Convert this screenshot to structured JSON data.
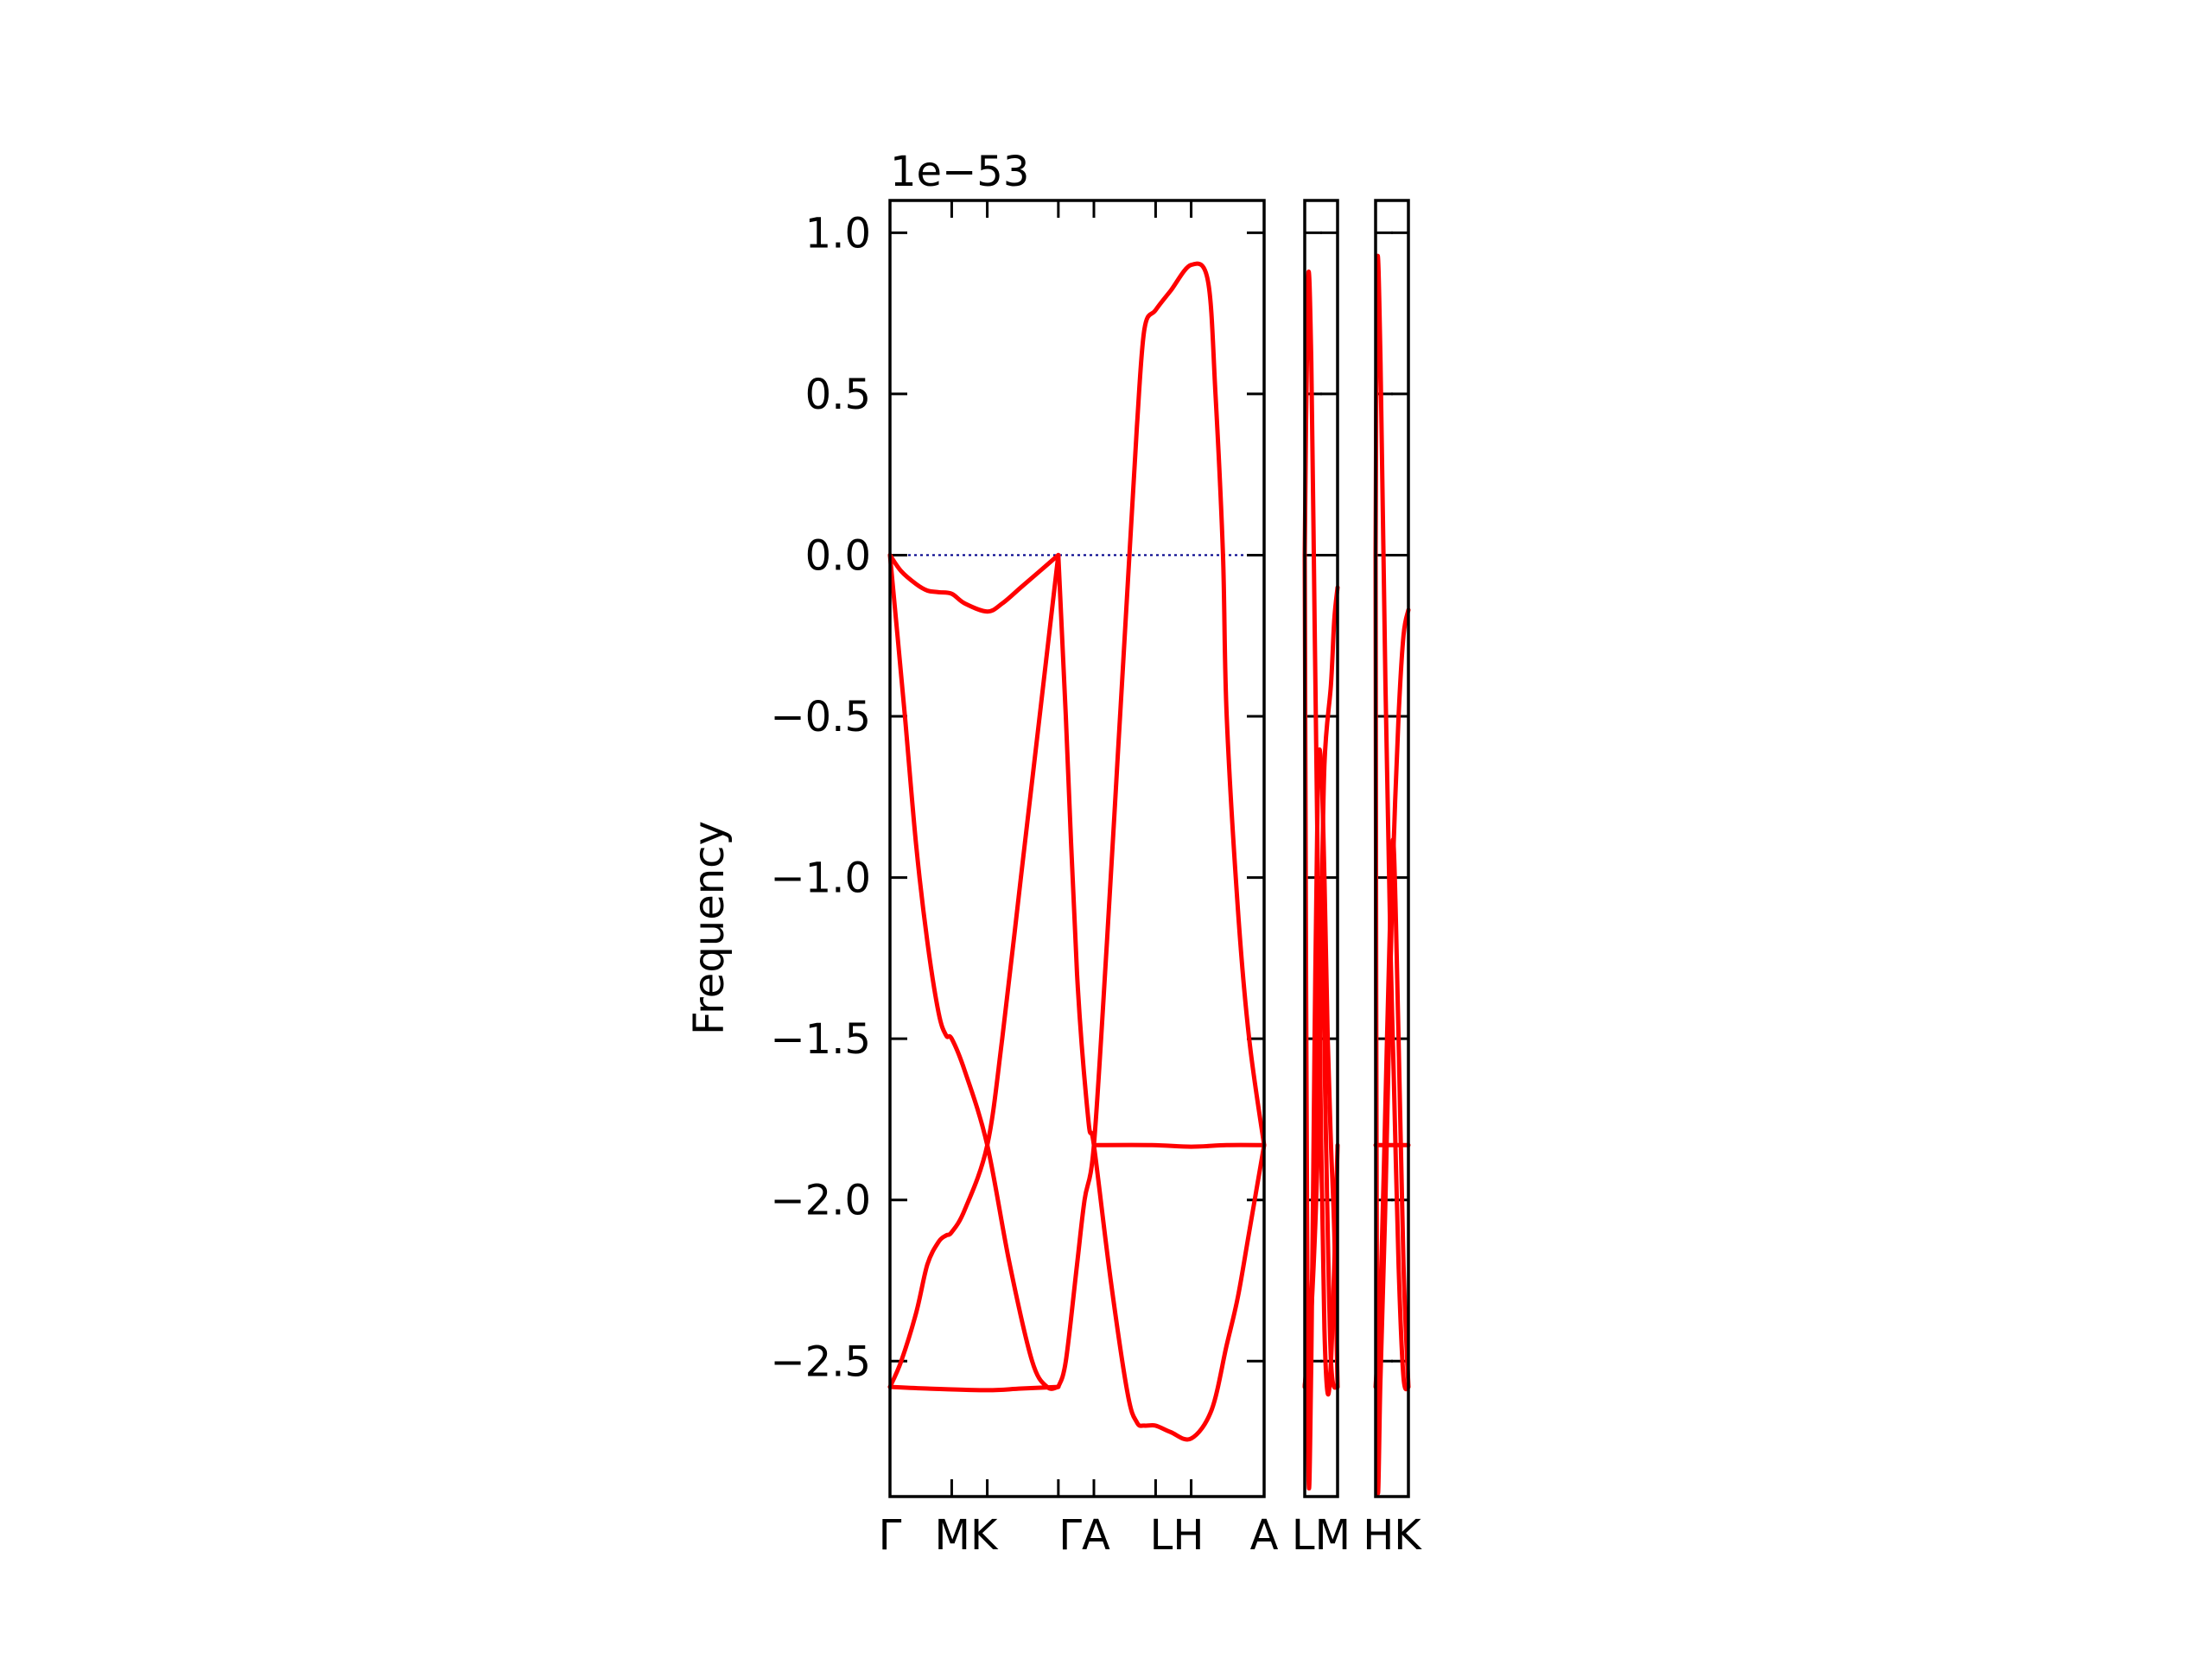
{
  "chart_data": {
    "type": "line",
    "title": "",
    "xlabel": "",
    "ylabel": "Frequency",
    "y_offset_label": "1e−53",
    "ylim": [
      -2.92,
      1.1
    ],
    "yticks": [
      1.0,
      0.5,
      0.0,
      -0.5,
      -1.0,
      -1.5,
      -2.0,
      -2.5
    ],
    "ytick_labels": [
      "1.0",
      "0.5",
      "0.0",
      "−0.5",
      "−1.0",
      "−1.5",
      "−2.0",
      "−2.5"
    ],
    "zero_line": {
      "y": 0.0,
      "color": "#00008b",
      "style": "dotted"
    },
    "band_color": "#ff0000",
    "grid": false,
    "legend": "none",
    "segments": [
      {
        "name": "Γ-M-K-Γ-A-L-H-A",
        "xlim": [
          0,
          1
        ],
        "ticks": [
          {
            "x": 0.0,
            "label": "Γ"
          },
          {
            "x": 0.165,
            "label": "M"
          },
          {
            "x": 0.26,
            "label": ""
          },
          {
            "x": 0.45,
            "label": "Γ"
          },
          {
            "x": 0.545,
            "label": "A"
          },
          {
            "x": 0.71,
            "label": "L"
          },
          {
            "x": 0.805,
            "label": "H"
          },
          {
            "x": 1.0,
            "label": "A"
          }
        ],
        "tick_text": [
          "Γ",
          "MK",
          "ΓA",
          "LH",
          "A"
        ],
        "branches": [
          {
            "x": [
              0,
              0.03,
              0.07,
              0.1,
              0.13,
              0.165,
              0.2,
              0.26,
              0.3,
              0.35,
              0.4,
              0.45
            ],
            "y": [
              0.0,
              -0.05,
              -0.09,
              -0.11,
              -0.115,
              -0.12,
              -0.15,
              -0.175,
              -0.15,
              -0.1,
              -0.05,
              0.0
            ]
          },
          {
            "x": [
              0,
              0.02,
              0.04,
              0.07,
              0.1,
              0.13,
              0.15,
              0.165,
              0.2,
              0.26,
              0.32,
              0.38,
              0.42,
              0.45
            ],
            "y": [
              0.0,
              -0.25,
              -0.5,
              -0.9,
              -1.2,
              -1.42,
              -1.49,
              -1.5,
              -1.6,
              -1.83,
              -2.2,
              -2.5,
              -2.58,
              -2.58
            ]
          },
          {
            "x": [
              0,
              0.03,
              0.07,
              0.1,
              0.13,
              0.15,
              0.165,
              0.2,
              0.26,
              0.3,
              0.35,
              0.4,
              0.45
            ],
            "y": [
              -2.58,
              -2.5,
              -2.35,
              -2.2,
              -2.13,
              -2.11,
              -2.1,
              -2.03,
              -1.83,
              -1.5,
              -1.0,
              -0.5,
              0.0
            ]
          },
          {
            "x": [
              0,
              0.1,
              0.26,
              0.35,
              0.45
            ],
            "y": [
              -2.58,
              -2.585,
              -2.59,
              -2.585,
              -2.58
            ]
          },
          {
            "x": [
              0.45,
              0.47,
              0.5,
              0.53,
              0.545,
              0.59,
              0.635,
              0.66,
              0.68,
              0.71,
              0.75,
              0.805,
              0.86,
              0.9,
              0.93,
              0.96,
              1.0
            ],
            "y": [
              0.0,
              -0.5,
              -1.3,
              -1.75,
              -1.83,
              -2.25,
              -2.6,
              -2.69,
              -2.7,
              -2.7,
              -2.72,
              -2.74,
              -2.65,
              -2.45,
              -2.3,
              -2.1,
              -1.83
            ]
          },
          {
            "x": [
              0.45,
              0.47,
              0.5,
              0.52,
              0.545,
              0.58,
              0.61,
              0.64,
              0.66,
              0.68,
              0.71,
              0.75,
              0.805,
              0.85,
              0.87,
              0.89,
              0.9,
              0.93,
              0.96,
              1.0
            ],
            "y": [
              -2.58,
              -2.5,
              -2.2,
              -2.0,
              -1.83,
              -1.2,
              -0.6,
              0.0,
              0.4,
              0.7,
              0.76,
              0.82,
              0.9,
              0.85,
              0.5,
              0.0,
              -0.5,
              -1.1,
              -1.5,
              -1.83
            ]
          },
          {
            "x": [
              0.545,
              0.7,
              0.805,
              0.9,
              1.0
            ],
            "y": [
              -1.83,
              -1.83,
              -1.835,
              -1.83,
              -1.83
            ]
          }
        ]
      },
      {
        "name": "L-M",
        "xlim": [
          0,
          1
        ],
        "ticks": [
          {
            "x": 0.0,
            "label": "L"
          },
          {
            "x": 1.0,
            "label": "M"
          }
        ],
        "tick_text": [
          "LM"
        ],
        "branches": [
          {
            "x": [
              0,
              0.1,
              0.2,
              0.3,
              0.4,
              0.5,
              0.6,
              0.7,
              0.8,
              0.9,
              1.0
            ],
            "y": [
              0.0,
              0.85,
              0.6,
              -0.2,
              -1.0,
              -1.83,
              -2.4,
              -2.6,
              -2.5,
              -2.2,
              -1.83
            ]
          },
          {
            "x": [
              0,
              0.1,
              0.2,
              0.3,
              0.4,
              0.5,
              0.6,
              0.7,
              0.8,
              0.9,
              1.0
            ],
            "y": [
              0.0,
              -2.72,
              -2.5,
              -1.5,
              -0.7,
              -0.65,
              -1.0,
              -1.5,
              -1.83,
              -2.1,
              -2.58
            ]
          },
          {
            "x": [
              0,
              0.2,
              0.4,
              0.5,
              0.6,
              0.8,
              0.9,
              1.0
            ],
            "y": [
              -2.58,
              -2.35,
              -1.83,
              -1.2,
              -0.65,
              -0.4,
              -0.2,
              -0.1
            ]
          },
          {
            "x": [
              0,
              0.2,
              0.35,
              0.5,
              0.65,
              0.8,
              1.0
            ],
            "y": [
              -2.58,
              -2.3,
              -1.83,
              -1.05,
              -1.83,
              -2.5,
              -2.58
            ]
          }
        ]
      },
      {
        "name": "H-K",
        "xlim": [
          0,
          1
        ],
        "ticks": [
          {
            "x": 0.0,
            "label": "H"
          },
          {
            "x": 1.0,
            "label": "K"
          }
        ],
        "tick_text": [
          "HK"
        ],
        "branches": [
          {
            "x": [
              0,
              0.05,
              0.15,
              0.3,
              0.45,
              0.55,
              0.7,
              0.85,
              1.0
            ],
            "y": [
              0.0,
              0.9,
              0.6,
              -0.4,
              -1.2,
              -1.6,
              -2.2,
              -2.55,
              -2.58
            ]
          },
          {
            "x": [
              0,
              0.05,
              0.15,
              0.3,
              0.45,
              0.55,
              0.7,
              0.85,
              1.0
            ],
            "y": [
              0.0,
              -2.74,
              -2.55,
              -2.0,
              -1.3,
              -0.9,
              -0.5,
              -0.25,
              -0.17
            ]
          },
          {
            "x": [
              0,
              0.15,
              0.3,
              0.45,
              0.55,
              0.7,
              0.85,
              1.0
            ],
            "y": [
              -2.58,
              -2.3,
              -1.7,
              -1.1,
              -0.9,
              -1.5,
              -2.2,
              -2.58
            ]
          },
          {
            "x": [
              0,
              0.15,
              0.3,
              0.45,
              0.55,
              0.7,
              0.85,
              1.0
            ],
            "y": [
              -1.83,
              -1.83,
              -1.83,
              -1.83,
              -1.83,
              -1.83,
              -1.83,
              -1.83
            ]
          }
        ]
      }
    ]
  }
}
